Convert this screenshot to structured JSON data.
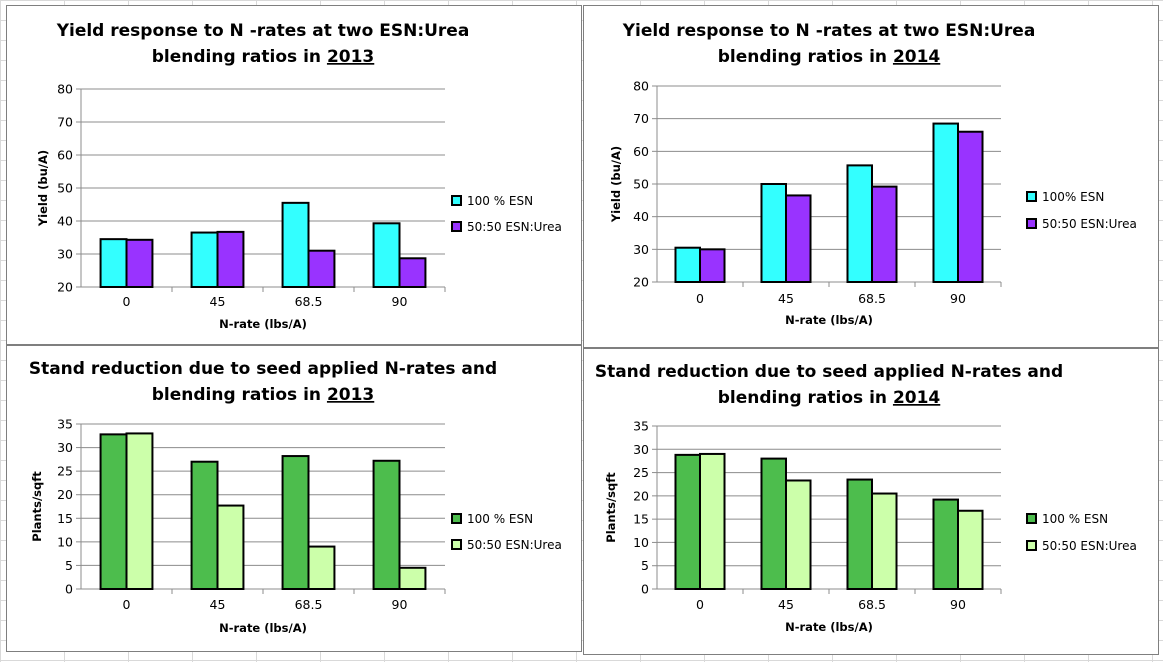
{
  "chart_data": [
    {
      "type": "bar",
      "title_prefix": "Yield response to N -rates at two ESN:Urea",
      "title_line2": "blending ratios in",
      "title_year": "2013",
      "xlabel": "N-rate (lbs/A)",
      "ylabel": "Yield (bu/A)",
      "ylim": [
        20,
        80
      ],
      "yticks": [
        "20",
        "30",
        "40",
        "50",
        "60",
        "70",
        "80"
      ],
      "grid": true,
      "legend_position": "right",
      "categories": [
        "0",
        "45",
        "68.5",
        "90"
      ],
      "series": [
        {
          "name": "100 % ESN",
          "color": "#33ffff",
          "values": [
            34.5,
            36.5,
            45.5,
            39.3
          ]
        },
        {
          "name": "50:50 ESN:Urea",
          "color": "#9933ff",
          "values": [
            34.3,
            36.7,
            31.0,
            28.7
          ]
        }
      ]
    },
    {
      "type": "bar",
      "title_prefix": "Yield response to N -rates at two ESN:Urea",
      "title_line2": "blending ratios in",
      "title_year": "2014",
      "xlabel": "N-rate (lbs/A)",
      "ylabel": "Yield (bu/A)",
      "ylim": [
        20,
        80
      ],
      "yticks": [
        "20",
        "30",
        "40",
        "50",
        "60",
        "70",
        "80"
      ],
      "grid": true,
      "legend_position": "right",
      "categories": [
        "0",
        "45",
        "68.5",
        "90"
      ],
      "series": [
        {
          "name": "100% ESN",
          "color": "#33ffff",
          "values": [
            30.5,
            50.0,
            55.7,
            68.5
          ]
        },
        {
          "name": "50:50 ESN:Urea",
          "color": "#9933ff",
          "values": [
            30.0,
            46.5,
            49.2,
            66.0
          ]
        }
      ]
    },
    {
      "type": "bar",
      "title_prefix": "Stand reduction due to seed applied N-rates and",
      "title_line2": "blending ratios in",
      "title_year": "2013",
      "xlabel": "N-rate (lbs/A)",
      "ylabel": "Plants/sqft",
      "ylim": [
        0,
        35
      ],
      "yticks": [
        "0",
        "5",
        "10",
        "15",
        "20",
        "25",
        "30",
        "35"
      ],
      "grid": true,
      "legend_position": "right",
      "categories": [
        "0",
        "45",
        "68.5",
        "90"
      ],
      "series": [
        {
          "name": "100 % ESN",
          "color": "#4dbd4d",
          "values": [
            32.8,
            27.0,
            28.2,
            27.2
          ]
        },
        {
          "name": "50:50 ESN:Urea",
          "color": "#ccffaa",
          "values": [
            33.0,
            17.7,
            9.0,
            4.5
          ]
        }
      ]
    },
    {
      "type": "bar",
      "title_prefix": "Stand reduction due to seed applied N-rates and",
      "title_line2": "blending ratios in",
      "title_year": "2014",
      "xlabel": "N-rate (lbs/A)",
      "ylabel": "Plants/sqft",
      "ylim": [
        0,
        35
      ],
      "yticks": [
        "0",
        "5",
        "10",
        "15",
        "20",
        "25",
        "30",
        "35"
      ],
      "grid": true,
      "legend_position": "right",
      "categories": [
        "0",
        "45",
        "68.5",
        "90"
      ],
      "series": [
        {
          "name": "100 % ESN",
          "color": "#4dbd4d",
          "values": [
            28.8,
            28.0,
            23.5,
            19.2
          ]
        },
        {
          "name": "50:50 ESN:Urea",
          "color": "#ccffaa",
          "values": [
            29.0,
            23.3,
            20.5,
            16.8
          ]
        }
      ]
    }
  ]
}
